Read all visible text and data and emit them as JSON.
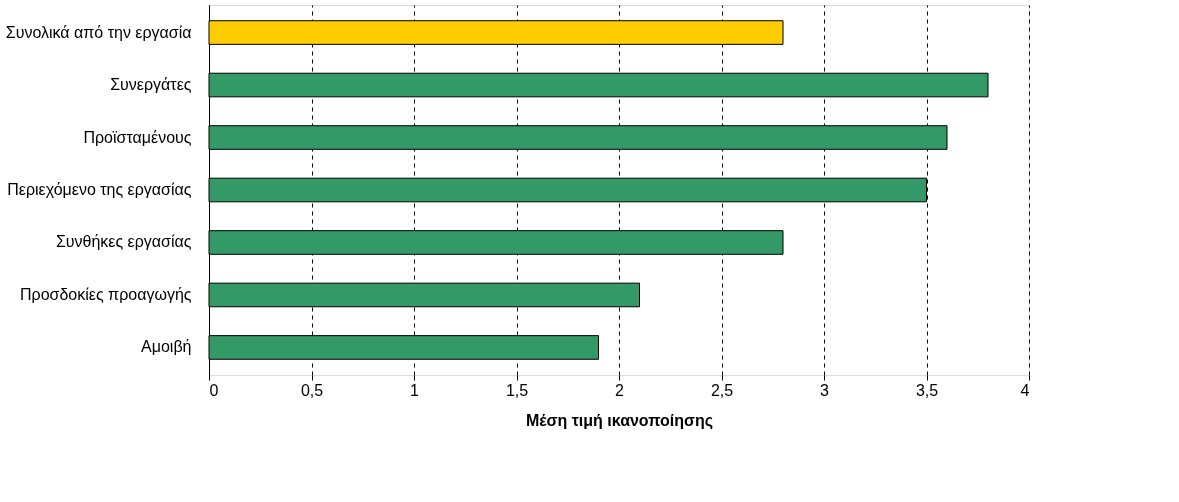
{
  "chart_data": {
    "type": "bar",
    "orientation": "horizontal",
    "xlabel": "Μέση τιμή ικανοποίησης",
    "categories": [
      "Συνολικά από την εργασία",
      "Συνεργάτες",
      "Προϊσταμένους",
      "Περιεχόμενο της εργασίας",
      "Συνθήκες εργασίας",
      "Προσδοκίες προαγωγής",
      "Αμοιβή"
    ],
    "values": [
      2.8,
      3.8,
      3.6,
      3.5,
      2.8,
      2.1,
      1.9
    ],
    "colors": [
      "#ffcc00",
      "#339966",
      "#339966",
      "#339966",
      "#339966",
      "#339966",
      "#339966"
    ],
    "xlim": [
      0,
      4
    ],
    "xticks": [
      0,
      {
        "value": 0.5,
        "label": "0,5"
      },
      1,
      {
        "value": 1.5,
        "label": "1,5"
      },
      2,
      {
        "value": 2.5,
        "label": "2,5"
      },
      3,
      {
        "value": 3.5,
        "label": "3,5"
      },
      4
    ],
    "grid": "x"
  }
}
